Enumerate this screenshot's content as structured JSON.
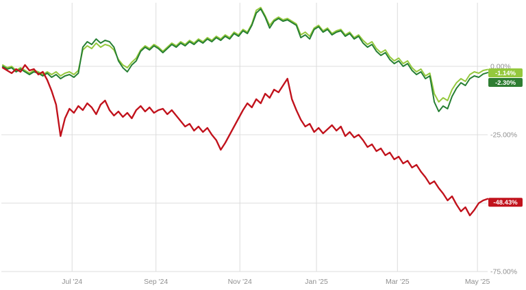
{
  "chart_data": {
    "type": "line",
    "title": "",
    "description": "One-year percent-change comparison chart of three instruments",
    "grid": true,
    "legend_position": "none",
    "colors": {
      "background": "#ffffff",
      "gridline": "#dcdcdc",
      "tick_text": "#8f8f8f"
    },
    "x_axis": {
      "ticks": [
        {
          "label": "Jul '24",
          "f": 0.143
        },
        {
          "label": "Sep '24",
          "f": 0.316
        },
        {
          "label": "Nov '24",
          "f": 0.489
        },
        {
          "label": "Jan '25",
          "f": 0.647
        },
        {
          "label": "Mar '25",
          "f": 0.814
        },
        {
          "label": "May '25",
          "f": 0.979
        }
      ]
    },
    "y_axis": {
      "unit": "%",
      "ylim": [
        -75,
        23.25
      ],
      "gridlines_pct": [
        0,
        -25,
        -50,
        -75
      ],
      "tick_labels": [
        {
          "value": 0,
          "label": "0.00%"
        },
        {
          "value": -25,
          "label": "-25.00%"
        },
        {
          "value": -75,
          "label": "-75.00%"
        }
      ]
    },
    "series": [
      {
        "name": "light-green",
        "color": "#94C83D",
        "badge_color": "#94C83D",
        "end_label": "-1.14%",
        "end_value": -1.14,
        "stroke_width": 2,
        "values": [
          0.5,
          -0.5,
          0.0,
          -1.5,
          -0.5,
          -1.5,
          -2.5,
          -1.5,
          -2.0,
          -3.0,
          -2.0,
          -3.0,
          -2.0,
          -3.5,
          -2.5,
          -2.0,
          -3.0,
          -1.5,
          6.0,
          7.5,
          6.5,
          8.5,
          7.0,
          8.0,
          7.5,
          6.0,
          2.5,
          0.5,
          -0.5,
          1.5,
          3.0,
          6.0,
          7.5,
          6.5,
          8.0,
          7.0,
          5.5,
          7.0,
          8.5,
          7.5,
          9.0,
          8.0,
          9.5,
          8.5,
          10.0,
          9.0,
          10.5,
          9.5,
          11.0,
          10.0,
          11.5,
          10.5,
          12.5,
          11.5,
          13.5,
          12.5,
          15.5,
          20.5,
          21.5,
          18.5,
          15.0,
          17.0,
          18.0,
          17.0,
          17.5,
          16.5,
          15.5,
          11.5,
          12.5,
          11.0,
          14.0,
          15.0,
          13.0,
          14.0,
          12.0,
          13.0,
          13.5,
          11.5,
          12.5,
          10.5,
          11.5,
          9.5,
          8.0,
          9.0,
          6.5,
          5.0,
          6.0,
          3.5,
          2.0,
          3.0,
          1.0,
          2.0,
          -0.5,
          -2.0,
          -1.0,
          -3.5,
          -2.5,
          -10.0,
          -13.0,
          -11.5,
          -12.5,
          -8.5,
          -6.0,
          -4.5,
          -5.5,
          -3.0,
          -2.0,
          -2.5,
          -1.5,
          -1.14
        ]
      },
      {
        "name": "dark-green",
        "color": "#267F33",
        "badge_color": "#2E7D32",
        "end_label": "-2.30%",
        "end_value": -2.3,
        "stroke_width": 2,
        "values": [
          0.0,
          -1.0,
          -0.5,
          -2.0,
          -1.0,
          -2.0,
          -3.0,
          -2.0,
          -2.5,
          -3.5,
          -2.5,
          -4.0,
          -3.0,
          -4.5,
          -3.5,
          -3.0,
          -4.0,
          -2.5,
          7.0,
          9.0,
          8.0,
          10.0,
          8.5,
          9.5,
          9.0,
          7.0,
          2.0,
          -0.5,
          -2.0,
          0.5,
          2.0,
          5.5,
          7.0,
          6.0,
          7.5,
          6.5,
          5.0,
          6.5,
          8.0,
          7.0,
          8.5,
          7.5,
          9.0,
          8.0,
          9.5,
          8.5,
          10.0,
          9.0,
          10.5,
          9.5,
          11.0,
          10.0,
          12.0,
          11.0,
          13.0,
          12.0,
          15.0,
          19.5,
          21.0,
          18.0,
          14.0,
          16.5,
          17.5,
          16.5,
          17.0,
          16.0,
          15.0,
          10.5,
          11.5,
          10.0,
          13.5,
          14.5,
          12.5,
          13.5,
          11.5,
          12.5,
          13.0,
          11.0,
          12.0,
          10.0,
          11.0,
          8.5,
          7.0,
          8.0,
          5.5,
          4.0,
          5.0,
          2.5,
          1.0,
          2.0,
          0.0,
          1.0,
          -1.5,
          -3.0,
          -2.0,
          -4.5,
          -3.5,
          -13.0,
          -16.5,
          -14.5,
          -15.5,
          -11.0,
          -8.0,
          -6.0,
          -7.0,
          -4.5,
          -3.5,
          -4.0,
          -2.8,
          -2.3
        ]
      },
      {
        "name": "red",
        "color": "#C1121C",
        "badge_color": "#C1121C",
        "end_label": "-48.43%",
        "end_value": -48.43,
        "stroke_width": 2.4,
        "values": [
          -0.5,
          -1.5,
          -2.5,
          -1.0,
          -2.0,
          0.5,
          -1.5,
          -1.0,
          -3.0,
          -2.0,
          -5.0,
          -9.0,
          -14.0,
          -25.5,
          -19.0,
          -15.5,
          -17.0,
          -14.5,
          -16.0,
          -13.5,
          -15.0,
          -17.5,
          -14.0,
          -12.5,
          -16.0,
          -18.0,
          -16.5,
          -18.5,
          -17.0,
          -19.0,
          -16.0,
          -14.5,
          -16.5,
          -15.0,
          -17.0,
          -16.0,
          -15.5,
          -17.5,
          -16.0,
          -18.0,
          -20.0,
          -22.0,
          -21.0,
          -23.5,
          -22.0,
          -24.0,
          -22.5,
          -25.0,
          -27.0,
          -30.5,
          -28.0,
          -25.0,
          -22.0,
          -19.0,
          -16.0,
          -13.5,
          -15.0,
          -12.0,
          -13.5,
          -10.0,
          -11.5,
          -8.5,
          -9.5,
          -7.0,
          -4.5,
          -12.0,
          -16.0,
          -19.5,
          -22.0,
          -21.0,
          -24.0,
          -22.5,
          -24.5,
          -23.0,
          -21.5,
          -23.5,
          -22.0,
          -25.5,
          -24.0,
          -26.0,
          -25.0,
          -27.0,
          -29.5,
          -28.5,
          -31.0,
          -30.0,
          -32.5,
          -31.5,
          -34.0,
          -33.0,
          -35.5,
          -34.5,
          -37.0,
          -36.0,
          -38.5,
          -40.5,
          -43.0,
          -42.0,
          -44.5,
          -46.5,
          -49.0,
          -47.5,
          -50.5,
          -53.0,
          -51.5,
          -54.5,
          -52.5,
          -50.0,
          -49.0,
          -48.43
        ]
      }
    ]
  }
}
